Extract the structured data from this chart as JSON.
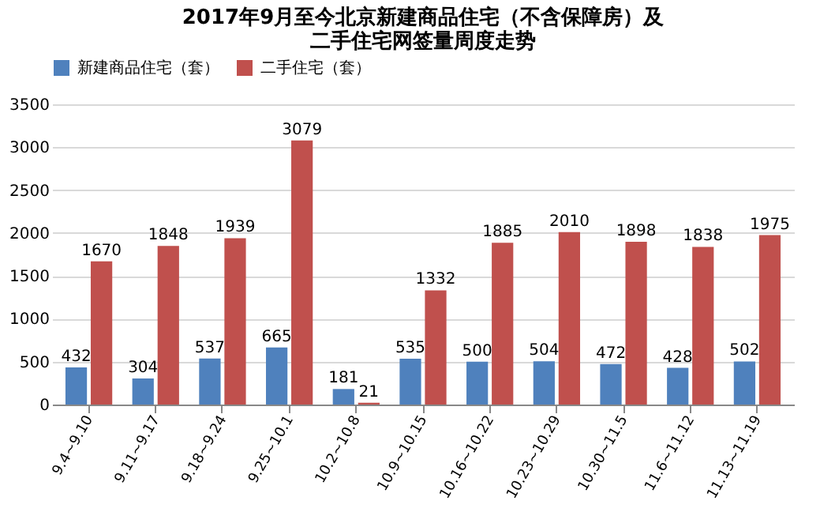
{
  "chart_data": {
    "type": "bar",
    "title": [
      "2017年9月至今北京新建商品住宅（不含保障房）及",
      "二手住宅网签量周度走势"
    ],
    "categories": [
      "9.4~9.10",
      "9.11~9.17",
      "9.18~9.24",
      "9.25~10.1",
      "10.2~10.8",
      "10.9~10.15",
      "10.16~10.22",
      "10.23~10.29",
      "10.30~11.5",
      "11.6~11.12",
      "11.13~11.19"
    ],
    "series": [
      {
        "name": "新建商品住宅（套）",
        "color": "#4f81bd",
        "values": [
          432,
          304,
          537,
          665,
          181,
          535,
          500,
          504,
          472,
          428,
          502
        ]
      },
      {
        "name": "二手住宅（套）",
        "color": "#c0504d",
        "values": [
          1670,
          1848,
          1939,
          3079,
          21,
          1332,
          1885,
          2010,
          1898,
          1838,
          1975
        ]
      }
    ],
    "ylim": [
      0,
      3500
    ],
    "yticks": [
      0,
      500,
      1000,
      1500,
      2000,
      2500,
      3000,
      3500
    ],
    "grid": "y",
    "legend": "top",
    "data_labels": true
  }
}
